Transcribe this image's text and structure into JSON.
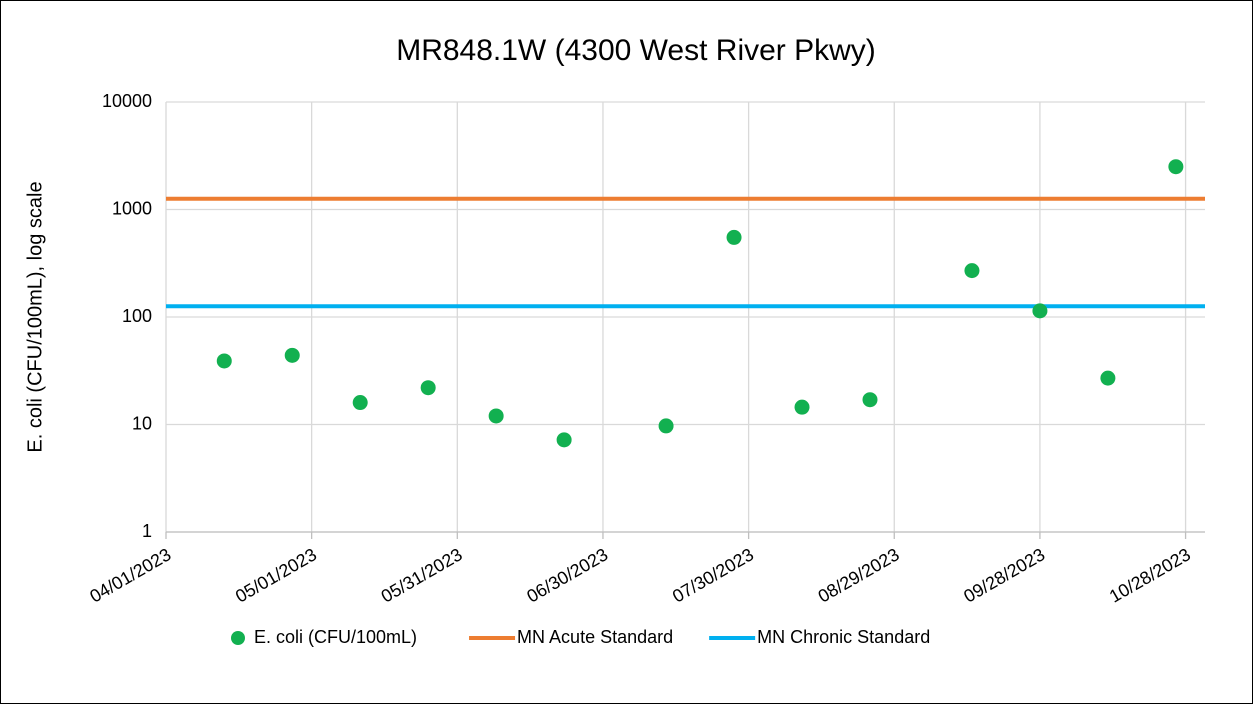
{
  "chart_data": {
    "type": "scatter",
    "title": "MR848.1W (4300 West River Pkwy)",
    "y_label": "E. coli (CFU/100mL), log scale",
    "log_scale_y": true,
    "grid": true,
    "legend_position": "bottom",
    "x": [
      "04/13/2023",
      "04/27/2023",
      "05/11/2023",
      "05/25/2023",
      "06/08/2023",
      "06/22/2023",
      "07/13/2023",
      "07/27/2023",
      "08/10/2023",
      "08/24/2023",
      "09/14/2023",
      "09/28/2023",
      "10/12/2023",
      "10/26/2023"
    ],
    "series": [
      {
        "name": "E. coli (CFU/100mL)",
        "color": "#12b050",
        "values": [
          39,
          44,
          16,
          22,
          12,
          7.2,
          9.7,
          550,
          14.5,
          17,
          270,
          114,
          27,
          2500
        ]
      }
    ],
    "reference_lines": [
      {
        "name": "MN Acute Standard",
        "color": "#ed7d31",
        "value": 1260
      },
      {
        "name": "MN Chronic Standard",
        "color": "#00b0f0",
        "value": 126
      }
    ],
    "xlim": [
      "04/01/2023",
      "11/01/2023"
    ],
    "xticks": [
      "04/01/2023",
      "05/01/2023",
      "05/31/2023",
      "06/30/2023",
      "07/30/2023",
      "08/29/2023",
      "09/28/2023",
      "10/28/2023"
    ],
    "ylim": [
      1,
      10000
    ],
    "yticks": [
      1,
      10,
      100,
      1000,
      10000
    ]
  }
}
